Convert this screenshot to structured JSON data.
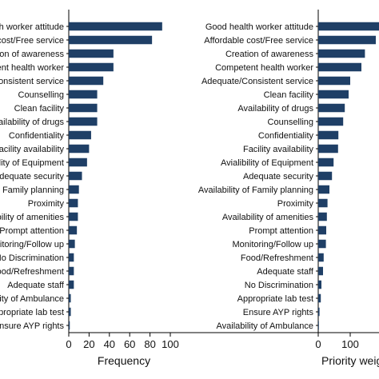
{
  "chart_data": [
    {
      "type": "bar",
      "orientation": "horizontal",
      "xlabel": "Frequency",
      "xlim": [
        0,
        110
      ],
      "xticks": [
        "0",
        "20",
        "40",
        "60",
        "80",
        "100"
      ],
      "grid": false,
      "bar_color": "#1f3f66",
      "categories": [
        "Good health worker attitude",
        "Affordable cost/Free service",
        "Creation of awareness",
        "Competent health worker",
        "Consistent service",
        "Counselling",
        "Clean facility",
        "Availability of drugs",
        "Confidentiality",
        "Facility availability",
        "Availability of Equipment",
        "Adequate security",
        "Availability of Family planning",
        "Proximity",
        "Availability of amenities",
        "Prompt attention",
        "Monitoring/Follow up",
        "No Discrimination",
        "Food/Refreshment",
        "Adequate staff",
        "Availability of Ambulance",
        "Appropriate lab test",
        "Ensure AYP rights"
      ],
      "values": [
        92,
        82,
        44,
        44,
        34,
        28,
        28,
        28,
        22,
        20,
        18,
        13,
        10,
        9,
        9,
        8,
        6,
        5,
        5,
        5,
        2,
        2,
        1
      ]
    },
    {
      "type": "bar",
      "orientation": "horizontal",
      "xlabel": "Priority weighted",
      "xlim": [
        0,
        200
      ],
      "xticks": [
        "0",
        "100"
      ],
      "grid": false,
      "bar_color": "#1f3f66",
      "categories": [
        "Good health worker attitude",
        "Affordable cost/Free service",
        "Creation of awareness",
        "Competent health worker",
        "Adequate/Consistent service",
        "Clean facility",
        "Availability of drugs",
        "Counselling",
        "Confidentiality",
        "Facility availability",
        "Avialibility of Equipment",
        "Adequate security",
        "Availability of Family planning",
        "Proximity",
        "Availability of amenities",
        "Prompt attention",
        "Monitoring/Follow up",
        "Food/Refreshment",
        "Adequate staff",
        "No Discrimination",
        "Appropriate lab test",
        "Ensure AYP rights",
        "Availability of Ambulance"
      ],
      "values": [
        190,
        180,
        146,
        135,
        100,
        95,
        83,
        78,
        63,
        62,
        48,
        43,
        35,
        29,
        27,
        25,
        24,
        17,
        15,
        10,
        8,
        4,
        2
      ]
    }
  ]
}
